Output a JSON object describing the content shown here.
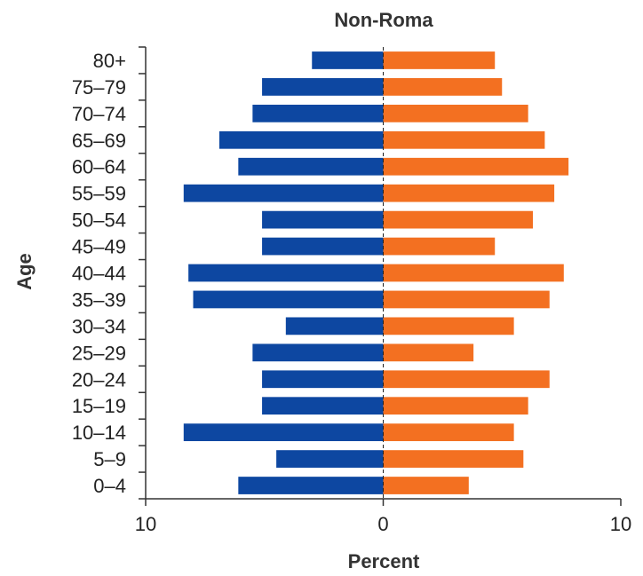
{
  "chart_data": {
    "type": "bar",
    "orientation": "horizontal",
    "layout": "population-pyramid",
    "title": "Non-Roma",
    "xlabel": "Percent",
    "ylabel": "Age",
    "xlim": [
      -10,
      10
    ],
    "x_ticks": [
      {
        "value": -10,
        "label": "10"
      },
      {
        "value": 0,
        "label": "0"
      },
      {
        "value": 10,
        "label": "10"
      }
    ],
    "categories": [
      "0–4",
      "5–9",
      "10–14",
      "15–19",
      "20–24",
      "25–29",
      "30–34",
      "35–39",
      "40–44",
      "45–49",
      "50–54",
      "55–59",
      "60–64",
      "65–69",
      "70–74",
      "75–79",
      "80+"
    ],
    "series": [
      {
        "side": "left",
        "color": "#0d47a1",
        "values": [
          6.1,
          4.5,
          8.4,
          5.1,
          5.1,
          5.5,
          4.1,
          8.0,
          8.2,
          5.1,
          5.1,
          8.4,
          6.1,
          6.9,
          5.5,
          5.1,
          3.0
        ]
      },
      {
        "side": "right",
        "color": "#f37021",
        "values": [
          3.6,
          5.9,
          5.5,
          6.1,
          7.0,
          3.8,
          5.5,
          7.0,
          7.6,
          4.7,
          6.3,
          7.2,
          7.8,
          6.8,
          6.1,
          5.0,
          4.7
        ]
      }
    ],
    "grid": false,
    "legend": "none"
  }
}
